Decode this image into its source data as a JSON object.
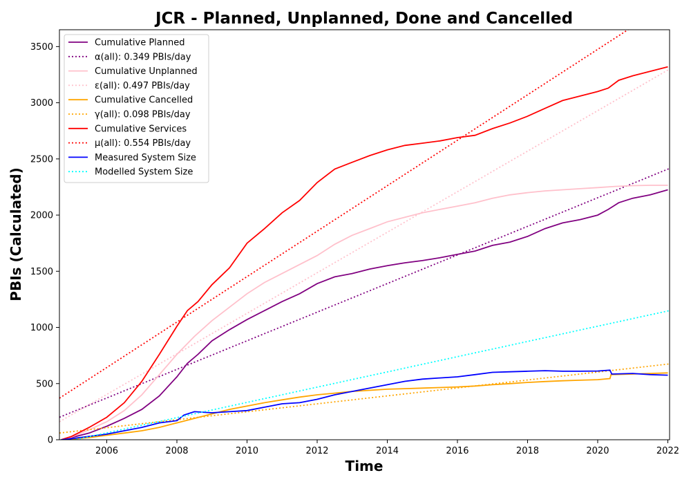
{
  "chart_data": {
    "type": "line",
    "title": "JCR - Planned, Unplanned, Done  and Cancelled",
    "xlabel": "Time",
    "ylabel": "PBIs (Calculated)",
    "xlim": [
      2004.65,
      2022.05
    ],
    "ylim": [
      0,
      3650
    ],
    "xticks": [
      2006,
      2008,
      2010,
      2012,
      2014,
      2016,
      2018,
      2020,
      2022
    ],
    "yticks": [
      0,
      500,
      1000,
      1500,
      2000,
      2500,
      3000,
      3500
    ],
    "grid": false,
    "legend_position": "top-left",
    "series": [
      {
        "name": "Cumulative Planned",
        "color": "#800080",
        "style": "solid",
        "x": [
          2004.7,
          2005.0,
          2005.5,
          2006.0,
          2006.5,
          2007.0,
          2007.5,
          2008.0,
          2008.3,
          2008.6,
          2009.0,
          2009.5,
          2010.0,
          2010.5,
          2011.0,
          2011.5,
          2012.0,
          2012.5,
          2013.0,
          2013.5,
          2014.0,
          2014.5,
          2015.0,
          2015.5,
          2016.0,
          2016.5,
          2017.0,
          2017.5,
          2018.0,
          2018.5,
          2019.0,
          2019.5,
          2020.0,
          2020.3,
          2020.6,
          2021.0,
          2021.5,
          2022.0
        ],
        "y": [
          0,
          20,
          60,
          120,
          190,
          270,
          390,
          560,
          680,
          760,
          880,
          980,
          1070,
          1150,
          1230,
          1300,
          1390,
          1450,
          1480,
          1520,
          1550,
          1575,
          1595,
          1620,
          1650,
          1680,
          1730,
          1760,
          1810,
          1880,
          1930,
          1960,
          2000,
          2050,
          2110,
          2150,
          2180,
          2225
        ]
      },
      {
        "name": "α(all): 0.349 PBIs/day",
        "color": "#800080",
        "style": "dotted",
        "x": [
          2004.65,
          2022.05
        ],
        "y": [
          200,
          2415
        ]
      },
      {
        "name": "Cumulative Unplanned",
        "color": "#FFC0CB",
        "style": "solid",
        "x": [
          2004.7,
          2005.0,
          2005.5,
          2006.0,
          2006.5,
          2007.0,
          2007.5,
          2008.0,
          2008.5,
          2009.0,
          2009.5,
          2010.0,
          2010.5,
          2011.0,
          2011.5,
          2012.0,
          2012.5,
          2013.0,
          2013.5,
          2014.0,
          2014.5,
          2015.0,
          2015.5,
          2016.0,
          2016.5,
          2017.0,
          2017.5,
          2018.0,
          2018.5,
          2019.0,
          2019.5,
          2020.0,
          2020.5,
          2021.0,
          2021.5,
          2022.0
        ],
        "y": [
          0,
          25,
          90,
          160,
          260,
          400,
          580,
          760,
          920,
          1060,
          1180,
          1300,
          1400,
          1480,
          1560,
          1640,
          1740,
          1820,
          1880,
          1940,
          1980,
          2020,
          2050,
          2080,
          2110,
          2150,
          2180,
          2200,
          2215,
          2225,
          2235,
          2245,
          2255,
          2262,
          2265,
          2265
        ]
      },
      {
        "name": "ε(all): 0.497 PBIs/day",
        "color": "#FFC0CB",
        "style": "dotted",
        "x": [
          2004.65,
          2022.05
        ],
        "y": [
          160,
          3300
        ]
      },
      {
        "name": "Cumulative Cancelled",
        "color": "#FFA500",
        "style": "solid",
        "x": [
          2004.7,
          2005.0,
          2005.5,
          2006.0,
          2006.5,
          2007.0,
          2007.5,
          2008.0,
          2008.5,
          2009.0,
          2009.5,
          2010.0,
          2010.5,
          2011.0,
          2011.5,
          2012.0,
          2012.5,
          2013.0,
          2013.5,
          2014.0,
          2014.5,
          2015.0,
          2015.5,
          2016.0,
          2016.5,
          2017.0,
          2017.5,
          2018.0,
          2018.5,
          2019.0,
          2019.5,
          2020.0,
          2020.35,
          2020.38,
          2021.0,
          2021.5,
          2022.0
        ],
        "y": [
          0,
          5,
          20,
          40,
          60,
          80,
          110,
          150,
          190,
          230,
          270,
          300,
          330,
          355,
          380,
          400,
          415,
          430,
          440,
          450,
          455,
          460,
          465,
          470,
          478,
          490,
          500,
          510,
          518,
          525,
          530,
          535,
          545,
          580,
          585,
          590,
          595
        ]
      },
      {
        "name": "γ(all): 0.098 PBIs/day",
        "color": "#FFA500",
        "style": "dotted",
        "x": [
          2004.65,
          2022.05
        ],
        "y": [
          60,
          675
        ]
      },
      {
        "name": "Cumulative Services",
        "color": "#FF0000",
        "style": "solid",
        "x": [
          2004.7,
          2005.0,
          2005.5,
          2006.0,
          2006.5,
          2007.0,
          2007.5,
          2008.0,
          2008.3,
          2008.6,
          2009.0,
          2009.5,
          2010.0,
          2010.5,
          2011.0,
          2011.5,
          2012.0,
          2012.5,
          2013.0,
          2013.5,
          2014.0,
          2014.5,
          2015.0,
          2015.5,
          2016.0,
          2016.5,
          2017.0,
          2017.5,
          2018.0,
          2018.5,
          2019.0,
          2019.5,
          2020.0,
          2020.3,
          2020.6,
          2021.0,
          2021.5,
          2022.0
        ],
        "y": [
          0,
          30,
          110,
          200,
          330,
          520,
          760,
          1010,
          1150,
          1230,
          1380,
          1530,
          1750,
          1880,
          2020,
          2130,
          2290,
          2410,
          2470,
          2530,
          2580,
          2620,
          2640,
          2660,
          2690,
          2710,
          2770,
          2820,
          2880,
          2950,
          3020,
          3060,
          3100,
          3130,
          3200,
          3240,
          3280,
          3320
        ]
      },
      {
        "name": "μ(all): 0.554 PBIs/day",
        "color": "#FF0000",
        "style": "dotted",
        "x": [
          2004.65,
          2022.05
        ],
        "y": [
          370,
          3890
        ]
      },
      {
        "name": "Measured System Size",
        "color": "#0000FF",
        "style": "solid",
        "x": [
          2004.7,
          2005.0,
          2005.5,
          2006.0,
          2006.5,
          2007.0,
          2007.5,
          2008.0,
          2008.2,
          2008.5,
          2009.0,
          2009.5,
          2010.0,
          2010.5,
          2011.0,
          2011.5,
          2012.0,
          2012.5,
          2013.0,
          2013.5,
          2014.0,
          2014.5,
          2015.0,
          2015.5,
          2016.0,
          2016.5,
          2017.0,
          2017.5,
          2018.0,
          2018.5,
          2019.0,
          2019.5,
          2020.0,
          2020.35,
          2020.4,
          2021.0,
          2021.5,
          2022.0
        ],
        "y": [
          0,
          10,
          30,
          50,
          80,
          110,
          150,
          170,
          220,
          250,
          240,
          250,
          260,
          290,
          320,
          330,
          360,
          400,
          430,
          460,
          490,
          520,
          540,
          550,
          560,
          580,
          600,
          605,
          610,
          615,
          610,
          610,
          612,
          620,
          585,
          590,
          580,
          575
        ]
      },
      {
        "name": "Modelled System Size",
        "color": "#00FFFF",
        "style": "dotted",
        "x": [
          2004.65,
          2022.05
        ],
        "y": [
          -30,
          1150
        ]
      }
    ]
  }
}
